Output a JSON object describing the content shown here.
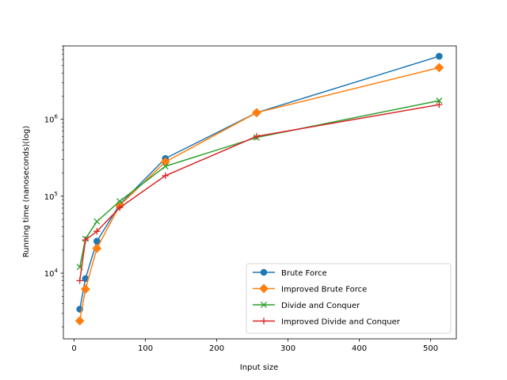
{
  "chart_data": {
    "type": "line",
    "title": "",
    "xlabel": "Input size",
    "ylabel": "Running time (nanoseconds)(log)",
    "xlim": [
      -15,
      536
    ],
    "ylim": [
      1400,
      9000000
    ],
    "yscale": "log",
    "x_ticks": [
      0,
      100,
      200,
      300,
      400,
      500
    ],
    "x_tick_labels": [
      "0",
      "100",
      "200",
      "300",
      "400",
      "500"
    ],
    "y_major_ticks": [
      10000,
      100000,
      1000000
    ],
    "y_tick_labels": [
      {
        "base": "10",
        "exp": "4"
      },
      {
        "base": "10",
        "exp": "5"
      },
      {
        "base": "10",
        "exp": "6"
      }
    ],
    "grid": false,
    "legend_position": "lower-right",
    "x": [
      8,
      16,
      32,
      64,
      128,
      256,
      512
    ],
    "series": [
      {
        "name": "Brute Force",
        "color": "#1f77b4",
        "marker": "circle",
        "values": [
          3400,
          8500,
          26000,
          78000,
          310000,
          1220000,
          6600000
        ]
      },
      {
        "name": "Improved Brute Force",
        "color": "#ff7f0e",
        "marker": "diamond",
        "values": [
          2400,
          6200,
          21000,
          76000,
          280000,
          1220000,
          4700000
        ]
      },
      {
        "name": "Divide and Conquer",
        "color": "#2ca02c",
        "marker": "x",
        "values": [
          12000,
          28000,
          47000,
          86000,
          245000,
          580000,
          1750000
        ]
      },
      {
        "name": "Improved Divide and Conquer",
        "color": "#d62728",
        "marker": "plus",
        "values": [
          8000,
          27000,
          35000,
          71000,
          185000,
          600000,
          1550000
        ]
      }
    ]
  }
}
